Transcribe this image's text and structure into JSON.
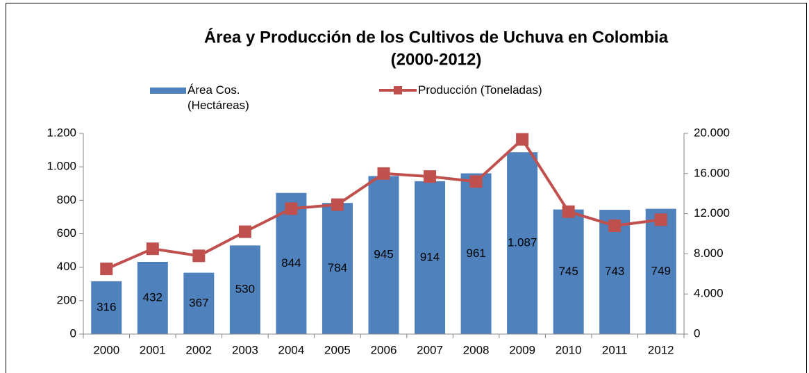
{
  "chart_data": {
    "type": "bar-line",
    "title": "Área y Producción de los Cultivos de Uchuva en Colombia",
    "subtitle": "(2000-2012)",
    "categories": [
      "2000",
      "2001",
      "2002",
      "2003",
      "2004",
      "2005",
      "2006",
      "2007",
      "2008",
      "2009",
      "2010",
      "2011",
      "2012"
    ],
    "series": [
      {
        "name": "Área Cos. (Hectáreas)",
        "type": "bar",
        "axis": "y",
        "color": "#4f81bd",
        "values": [
          316,
          432,
          367,
          530,
          844,
          784,
          945,
          914,
          961,
          1087,
          745,
          743,
          749
        ],
        "value_labels": [
          "316",
          "432",
          "367",
          "530",
          "844",
          "784",
          "945",
          "914",
          "961",
          "1.087",
          "745",
          "743",
          "749"
        ]
      },
      {
        "name": "Producción (Toneladas)",
        "type": "line",
        "axis": "y2",
        "color": "#c0504d",
        "values": [
          6500,
          8500,
          7800,
          10200,
          12500,
          12900,
          16000,
          15700,
          15200,
          19400,
          12200,
          10800,
          11400
        ]
      }
    ],
    "ylim": [
      0,
      1200
    ],
    "yticks": [
      0,
      200,
      400,
      600,
      800,
      {
        "value": 1000,
        "label": "1.000"
      },
      {
        "value": 1200,
        "label": "1.200"
      }
    ],
    "y2lim": [
      0,
      20000
    ],
    "y2ticks": [
      0,
      {
        "value": 4000,
        "label": "4.000"
      },
      {
        "value": 8000,
        "label": "8.000"
      },
      {
        "value": 12000,
        "label": "12.000"
      },
      {
        "value": 16000,
        "label": "16.000"
      },
      {
        "value": 20000,
        "label": "20.000"
      }
    ],
    "grid": false,
    "legend": "top"
  }
}
